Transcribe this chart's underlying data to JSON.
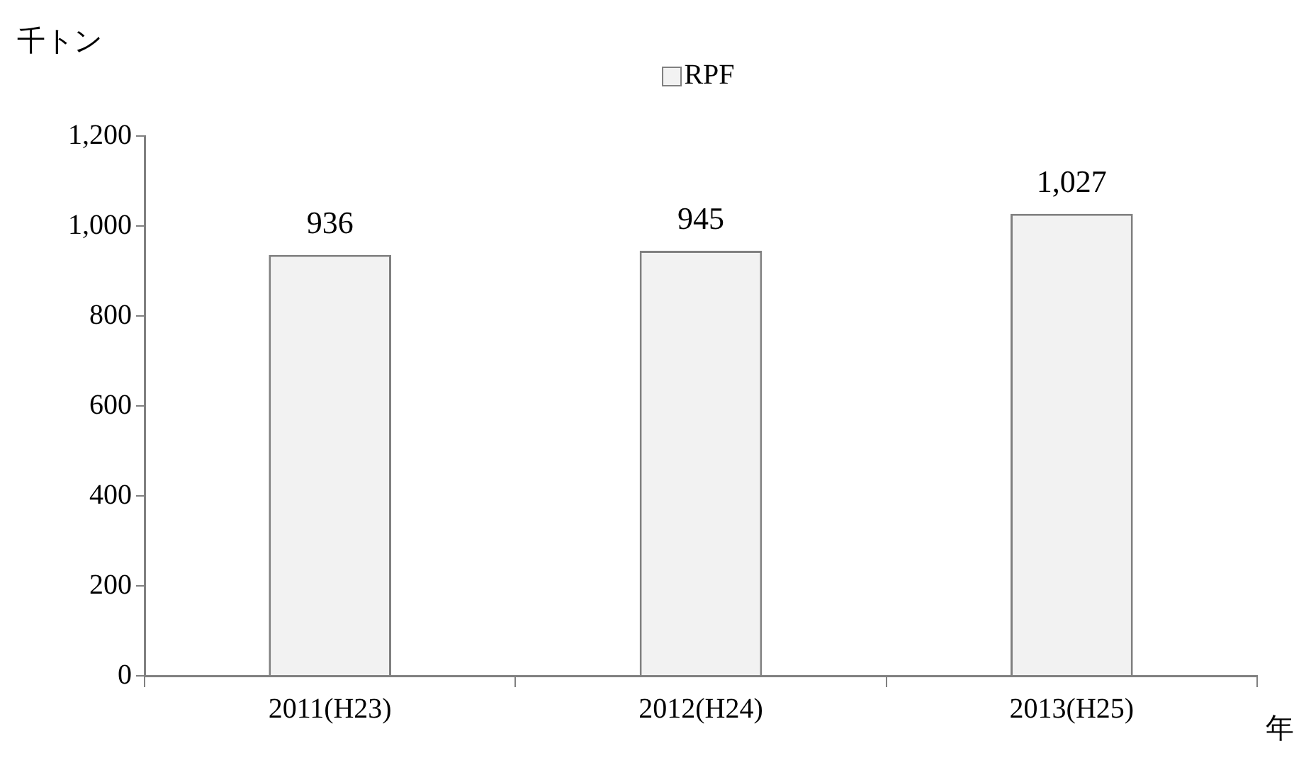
{
  "chart_data": {
    "type": "bar",
    "ylabel": "千トン",
    "xlabel": "年",
    "categories": [
      "2011(H23)",
      "2012(H24)",
      "2013(H25)"
    ],
    "series": [
      {
        "name": "RPF",
        "color": "#f2f2f2",
        "values": [
          936,
          945,
          1027
        ],
        "value_labels": [
          "936",
          "945",
          "1,027"
        ]
      }
    ],
    "ylim": [
      0,
      1200
    ],
    "yticks": [
      0,
      200,
      400,
      600,
      800,
      {
        "value": 1000,
        "label": "1,000"
      },
      {
        "value": 1200,
        "label": "1,200"
      }
    ],
    "grid": false,
    "legend": "top"
  }
}
